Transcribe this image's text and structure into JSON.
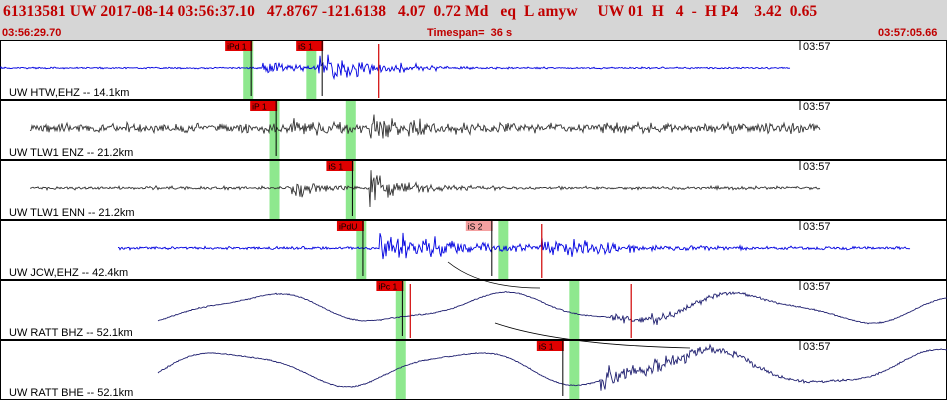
{
  "header": {
    "title": "61313581 UW 2017-08-14 03:56:37.10   47.8767 -121.6138   4.07  0.72 Md   eq  L amyw     UW 01  H   4  -  H P4    3.42  0.65",
    "start_time": "03:56:29.70",
    "timespan_label": "Timespan=  36 s",
    "end_time": "03:57:05.66"
  },
  "colors": {
    "header_bg": "#d6d6d6",
    "header_text": "#c00000",
    "pick_flag": "#e00000",
    "pick_flag_light": "#f4a0a0",
    "pick_window": "#8ee88e",
    "trace_blue": "#0000e0",
    "trace_gray": "#333333",
    "trace_navy": "#202070",
    "pick_line": "#d00000"
  },
  "panels": [
    {
      "label": "UW HTW,EHZ -- 14.1km",
      "time_tick": "03:57",
      "trace_color": "blue",
      "picks": [
        {
          "label": "iPd 1",
          "t": 9.55
        },
        {
          "label": "iS 1",
          "t": 12.25
        }
      ],
      "pick_windows": [
        9.4,
        11.8
      ],
      "red_markers": [
        14.4
      ]
    },
    {
      "label": "UW TLW1 ENZ -- 21.2km",
      "time_tick": "03:57",
      "trace_color": "gray",
      "picks": [
        {
          "label": "iP 1",
          "t": 10.5
        }
      ],
      "pick_windows": [
        10.4,
        13.3
      ],
      "red_markers": []
    },
    {
      "label": "UW TLW1 ENN -- 21.2km",
      "time_tick": "03:57",
      "trace_color": "gray",
      "picks": [
        {
          "label": "iS 1",
          "t": 13.4
        }
      ],
      "pick_windows": [
        10.4,
        13.3
      ],
      "red_markers": []
    },
    {
      "label": "UW JCW,EHZ -- 42.4km",
      "time_tick": "03:57",
      "trace_color": "blue",
      "picks": [
        {
          "label": "iPdU",
          "t": 13.8
        },
        {
          "label": "iS 2",
          "t": 18.7
        }
      ],
      "pick_windows": [
        13.7,
        19.1
      ],
      "red_markers": [
        20.6
      ]
    },
    {
      "label": "UW RATT BHZ -- 52.1km",
      "time_tick": "03:57",
      "trace_color": "navy",
      "picks": [
        {
          "label": "iPc 1",
          "t": 15.3
        }
      ],
      "pick_windows": [
        15.2,
        21.8
      ],
      "red_markers": [
        15.6,
        24.0
      ]
    },
    {
      "label": "UW RATT BHE -- 52.1km",
      "time_tick": "03:57",
      "trace_color": "navy",
      "picks": [
        {
          "label": "iS 1",
          "t": 21.4
        }
      ],
      "pick_windows": [
        15.2,
        21.8
      ],
      "red_markers": []
    }
  ]
}
